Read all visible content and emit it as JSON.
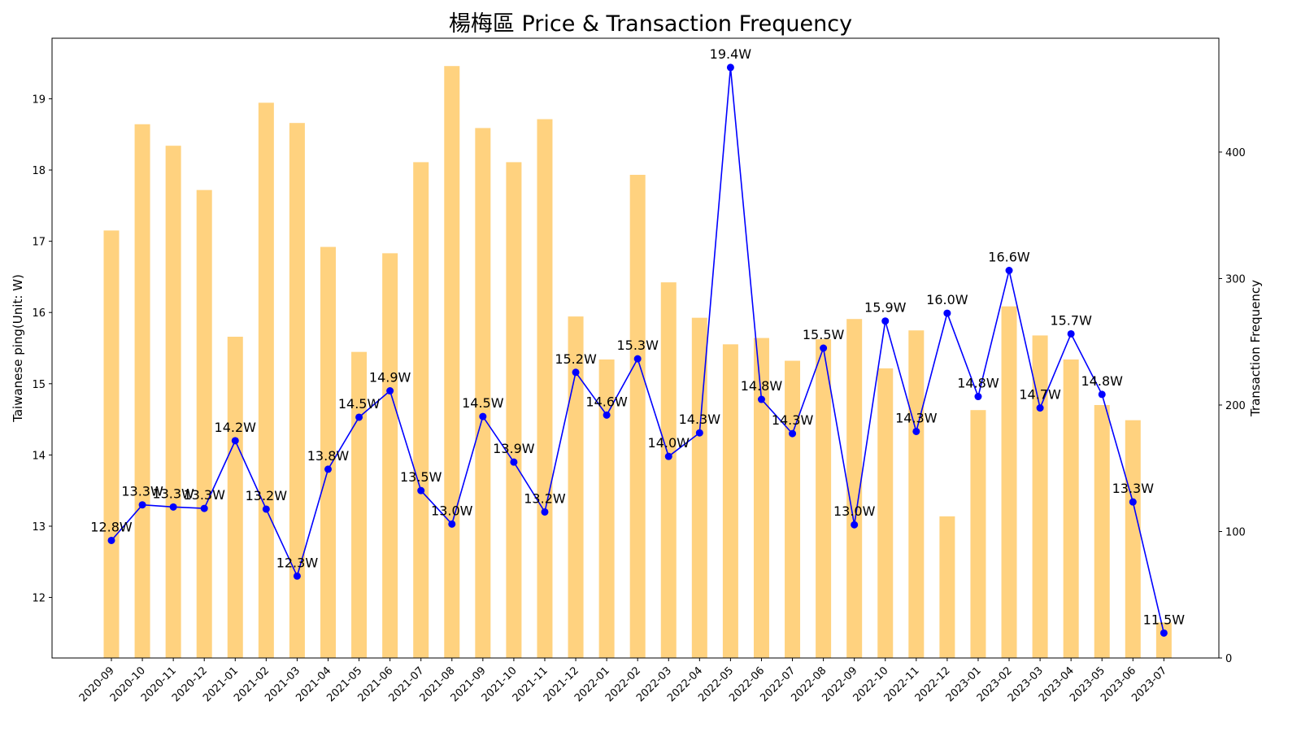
{
  "chart_data": {
    "type": "bar+line",
    "title": "楊梅區 Price & Transaction Frequency",
    "xlabel": "",
    "ylabel_left": "Taiwanese ping(Unit: W)",
    "ylabel_right": "Transaction Frequency",
    "ylim_left": [
      11.15,
      19.85
    ],
    "ylim_right": [
      0,
      490
    ],
    "yticks_left": [
      12,
      13,
      14,
      15,
      16,
      17,
      18,
      19
    ],
    "yticks_right": [
      0,
      100,
      200,
      300,
      400
    ],
    "grid": false,
    "categories": [
      "2020-09",
      "2020-10",
      "2020-11",
      "2020-12",
      "2021-01",
      "2021-02",
      "2021-03",
      "2021-04",
      "2021-05",
      "2021-06",
      "2021-07",
      "2021-08",
      "2021-09",
      "2021-10",
      "2021-11",
      "2021-12",
      "2022-01",
      "2022-02",
      "2022-03",
      "2022-04",
      "2022-05",
      "2022-06",
      "2022-07",
      "2022-08",
      "2022-09",
      "2022-10",
      "2022-11",
      "2022-12",
      "2023-01",
      "2023-02",
      "2023-03",
      "2023-04",
      "2023-05",
      "2023-06",
      "2023-07"
    ],
    "series": [
      {
        "kind": "bar",
        "axis": "right",
        "color": "#FFA500",
        "opacity": 0.5,
        "values": [
          338,
          422,
          405,
          370,
          254,
          439,
          423,
          325,
          242,
          320,
          392,
          468,
          419,
          392,
          426,
          270,
          236,
          382,
          297,
          269,
          248,
          253,
          235,
          252,
          268,
          229,
          259,
          112,
          196,
          278,
          255,
          236,
          200,
          188,
          28
        ]
      },
      {
        "kind": "line",
        "axis": "left",
        "color": "#0000FF",
        "marker": "circle",
        "values": [
          12.8,
          13.3,
          13.27,
          13.25,
          14.2,
          13.24,
          12.3,
          13.8,
          14.53,
          14.9,
          13.5,
          13.03,
          14.54,
          13.9,
          13.2,
          15.16,
          14.56,
          15.35,
          13.98,
          14.31,
          19.44,
          14.78,
          14.3,
          15.5,
          13.02,
          15.88,
          14.33,
          15.99,
          14.82,
          16.59,
          14.66,
          15.7,
          14.85,
          13.34,
          11.5
        ]
      }
    ],
    "data_labels": [
      "12.8W",
      "13.3W",
      "13.3W",
      "13.3W",
      "14.2W",
      "13.2W",
      "12.3W",
      "13.8W",
      "14.5W",
      "14.9W",
      "13.5W",
      "13.0W",
      "14.5W",
      "13.9W",
      "13.2W",
      "15.2W",
      "14.6W",
      "15.3W",
      "14.0W",
      "14.3W",
      "19.4W",
      "14.8W",
      "14.3W",
      "15.5W",
      "13.0W",
      "15.9W",
      "14.3W",
      "16.0W",
      "14.8W",
      "16.6W",
      "14.7W",
      "15.7W",
      "14.8W",
      "13.3W",
      "11.5W"
    ]
  }
}
